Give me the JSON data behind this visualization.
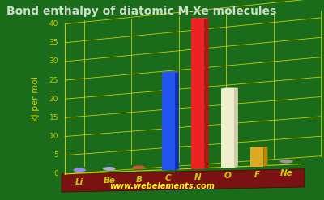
{
  "title": "Bond enthalpy of diatomic M-Xe molecules",
  "ylabel": "kJ per mol",
  "watermark": "www.webelements.com",
  "elements": [
    "Li",
    "Be",
    "B",
    "C",
    "N",
    "O",
    "F",
    "Ne"
  ],
  "values": [
    0,
    0,
    0,
    26.0,
    40.0,
    21.0,
    5.0,
    0
  ],
  "has_bar": [
    false,
    false,
    false,
    true,
    true,
    true,
    true,
    false
  ],
  "bar_colors_top": [
    "#cc66ff",
    "#aaaaff",
    "#bb4422",
    "#2255ee",
    "#ee2222",
    "#eeeecc",
    "#ddaa22",
    "#888888"
  ],
  "bar_colors_side": [
    "#aa44cc",
    "#8888dd",
    "#993311",
    "#1133bb",
    "#bb1111",
    "#ccccaa",
    "#bb8800",
    "#666666"
  ],
  "dot_colors": [
    "#9988ee",
    "#aaaadd",
    "#cc5533",
    "#3355dd",
    "#dd3333",
    "#ddddcc",
    "#ddbb33",
    "#999999"
  ],
  "floor_dot_colors": [
    "#8877dd",
    "#9999cc",
    "#bb4422",
    "#2244cc",
    "#cc2222",
    "#ccccbb",
    "#cc9900",
    "#888877"
  ],
  "yticks": [
    0,
    5,
    10,
    15,
    20,
    25,
    30,
    35,
    40
  ],
  "ylim": [
    0,
    40
  ],
  "bg_color": "#1a6b1a",
  "floor_color": "#7a1212",
  "grid_color": "#cccc00",
  "title_color": "#ccddcc",
  "label_color": "#cccc00",
  "title_fontsize": 10,
  "label_fontsize": 8
}
